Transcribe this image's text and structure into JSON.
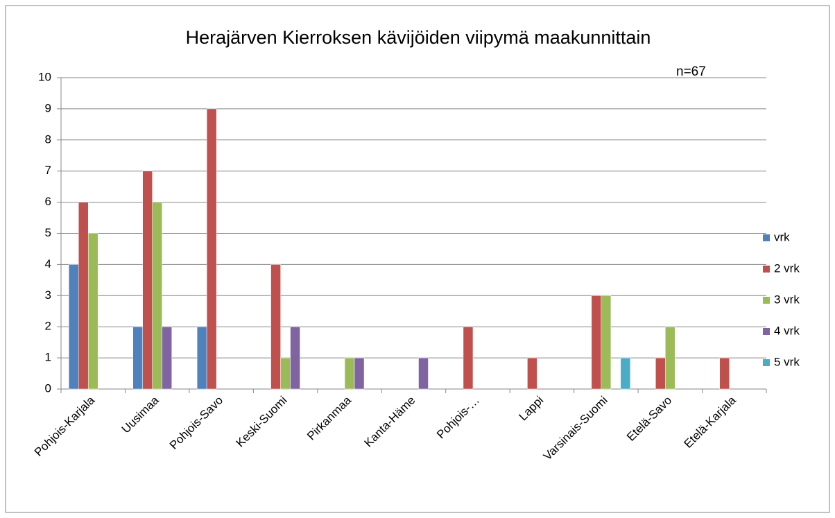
{
  "chart_data": {
    "type": "bar",
    "title": "Herajärven Kierroksen kävijöiden viipymä maakunnittain",
    "annotation": "n=67",
    "categories": [
      "Pohjois-Karjala",
      "Uusimaa",
      "Pohjois-Savo",
      "Keski-Suomi",
      "Pirkanmaa",
      "Kanta-Häme",
      "Pohjois-…",
      "Lappi",
      "Varsinais-Suomi",
      "Etelä-Savo",
      "Etelä-Karjala"
    ],
    "series": [
      {
        "name": "vrk",
        "color": "#4f81bd",
        "values": [
          4,
          2,
          2,
          0,
          0,
          0,
          0,
          0,
          0,
          0,
          0
        ]
      },
      {
        "name": "2 vrk",
        "color": "#c0504d",
        "values": [
          6,
          7,
          9,
          4,
          0,
          0,
          2,
          1,
          3,
          1,
          1
        ]
      },
      {
        "name": "3 vrk",
        "color": "#9bbb59",
        "values": [
          5,
          6,
          0,
          1,
          1,
          0,
          0,
          0,
          3,
          2,
          0
        ]
      },
      {
        "name": "4 vrk",
        "color": "#8064a2",
        "values": [
          0,
          2,
          0,
          2,
          1,
          1,
          0,
          0,
          0,
          0,
          0
        ]
      },
      {
        "name": "5 vrk",
        "color": "#4bacc6",
        "values": [
          0,
          0,
          0,
          0,
          0,
          0,
          0,
          0,
          1,
          0,
          0
        ]
      }
    ],
    "ylim": [
      0,
      10
    ],
    "yticks": [
      0,
      1,
      2,
      3,
      4,
      5,
      6,
      7,
      8,
      9,
      10
    ],
    "grid": true,
    "legend": "right"
  }
}
